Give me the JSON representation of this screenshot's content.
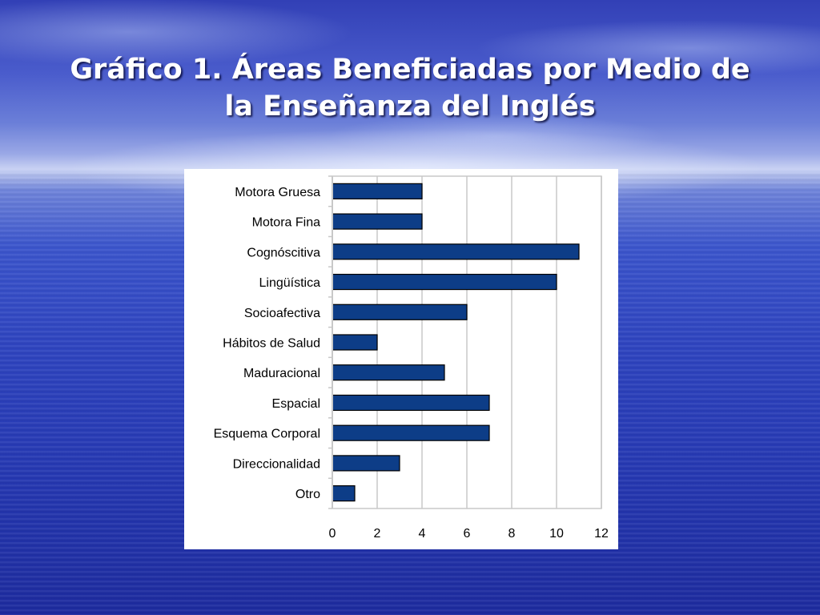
{
  "slide": {
    "title_line1": "Gráfico 1. Áreas Beneficiadas por Medio de",
    "title_line2": "la Enseñanza del Inglés"
  },
  "chart_data": {
    "type": "bar",
    "orientation": "horizontal",
    "categories": [
      "Motora Gruesa",
      "Motora Fina",
      "Cognóscitiva",
      "Lingüística",
      "Socioafectiva",
      "Hábitos de Salud",
      "Maduracional",
      "Espacial",
      "Esquema Corporal",
      "Direccionalidad",
      "Otro"
    ],
    "values": [
      4,
      4,
      11,
      10,
      6,
      2,
      5,
      7,
      7,
      3,
      1
    ],
    "xlim": [
      0,
      12
    ],
    "xticks": [
      "0",
      "2",
      "4",
      "6",
      "8",
      "10",
      "12"
    ],
    "grid": true,
    "legend": "none",
    "bar_color": "#0d3d87",
    "bar_edge_color": "#000000"
  }
}
